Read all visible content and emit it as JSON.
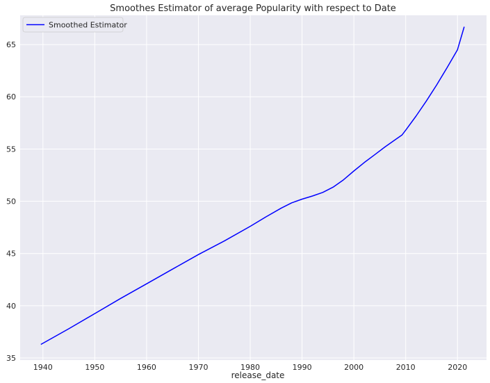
{
  "chart_data": {
    "type": "line",
    "title": "Smoothes Estimator of average Popularity with respect to Date",
    "xlabel": "release_date",
    "ylabel": "",
    "xlim": [
      1935.6,
      2025.6
    ],
    "ylim": [
      34.8,
      67.8
    ],
    "xticks": [
      1940,
      1950,
      1960,
      1970,
      1980,
      1990,
      2000,
      2010,
      2020
    ],
    "yticks": [
      35,
      40,
      45,
      50,
      55,
      60,
      65
    ],
    "grid": true,
    "legend_position": "top-left",
    "background_color": "#eaeaf2",
    "grid_color": "#ffffff",
    "series": [
      {
        "name": "Smoothed Estimator",
        "color": "#0000ff",
        "x": [
          1939.6,
          1945,
          1950,
          1955,
          1960,
          1965,
          1970,
          1975,
          1980,
          1983,
          1986,
          1988,
          1990,
          1992,
          1994,
          1996,
          1998,
          2000,
          2002,
          2004,
          2006,
          2008,
          2009.3,
          2010,
          2012,
          2014,
          2016,
          2018,
          2020,
          2021.3
        ],
        "y": [
          36.3,
          37.8,
          39.25,
          40.7,
          42.1,
          43.5,
          44.9,
          46.2,
          47.6,
          48.5,
          49.35,
          49.85,
          50.2,
          50.5,
          50.85,
          51.35,
          52.05,
          52.9,
          53.7,
          54.45,
          55.2,
          55.9,
          56.35,
          56.8,
          58.15,
          59.6,
          61.15,
          62.8,
          64.5,
          66.7
        ]
      }
    ]
  }
}
